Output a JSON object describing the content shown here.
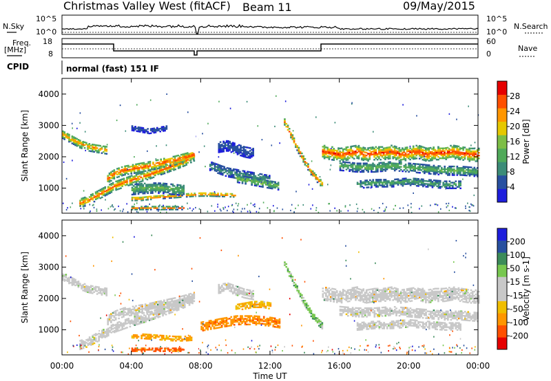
{
  "header": {
    "title": "Christmas Valley West (fitACF)",
    "beam": "Beam 11",
    "date": "09/May/2015"
  },
  "params": {
    "nsky_label": "N.Sky",
    "nsky_ticks": [
      "10^5",
      "10^0"
    ],
    "nsearch_label": "N.Search",
    "nsearch_ticks": [
      "10^5",
      "10^0"
    ],
    "freq_label_1": "Freq.",
    "freq_label_2": "[MHz]",
    "freq_ticks": [
      "18",
      "8"
    ],
    "nave_label": "Nave",
    "nave_ticks": [
      "60",
      "0"
    ],
    "cpid_label": "CPID",
    "cpid_value": "normal (fast) 151 IF"
  },
  "colors": {
    "power_scale": [
      "#1e1edc",
      "#2850a0",
      "#3c8c78",
      "#50aa5a",
      "#7dbe46",
      "#e6c800",
      "#ff9600",
      "#ff5000",
      "#e60000"
    ],
    "velocity_scale": [
      "#e60000",
      "#ff5000",
      "#ff9600",
      "#f0be00",
      "#c8c8c8",
      "#c8c8c8",
      "#78c850",
      "#3c8c5a",
      "#2850a0",
      "#1e1edc"
    ],
    "ground_scatter": "#c8c8c8"
  },
  "chart_data": [
    {
      "type": "heatmap",
      "name": "power",
      "xlabel": "Time UT",
      "ylabel": "Slant Range [km]",
      "xlim": [
        0,
        24
      ],
      "ylim": [
        200,
        4500
      ],
      "yticks": [
        "1000",
        "2000",
        "3000",
        "4000"
      ],
      "colorbar_label": "Power [dB]",
      "colorbar_range": [
        0,
        32
      ],
      "colorbar_ticks": [
        "4",
        "8",
        "12",
        "16",
        "20",
        "24",
        "28"
      ],
      "bands": [
        {
          "t": [
            0.0,
            0.5,
            1.0,
            1.5,
            2.0,
            2.6
          ],
          "r": [
            2700,
            2550,
            2400,
            2300,
            2250,
            2200
          ],
          "w": 260,
          "p": 24
        },
        {
          "t": [
            1.0,
            1.5,
            2.0,
            2.5,
            3.0,
            3.5,
            4.0,
            4.5,
            5.0,
            5.5,
            6.0,
            6.5,
            7.0,
            7.6
          ],
          "r": [
            500,
            600,
            750,
            900,
            1050,
            1150,
            1250,
            1330,
            1420,
            1520,
            1620,
            1720,
            1830,
            2000
          ],
          "w": 280,
          "p": 27
        },
        {
          "t": [
            2.6,
            3.0,
            3.5,
            4.0,
            4.5,
            5.0,
            5.5,
            6.0,
            6.5,
            7.0,
            7.6
          ],
          "r": [
            1300,
            1450,
            1550,
            1600,
            1650,
            1700,
            1760,
            1820,
            1880,
            1950,
            2050
          ],
          "w": 300,
          "p": 28
        },
        {
          "t": [
            4.0,
            4.5,
            5.0,
            5.5,
            6.0,
            6.5,
            7.0,
            7.5,
            8.0,
            8.5,
            9.0,
            9.5,
            10.0
          ],
          "r": [
            650,
            650,
            680,
            700,
            720,
            740,
            760,
            780,
            790,
            790,
            780,
            770,
            760
          ],
          "w": 120,
          "p": 28
        },
        {
          "t": [
            4.0,
            5.0,
            6.0,
            7.0
          ],
          "r": [
            350,
            350,
            350,
            350
          ],
          "w": 100,
          "p": 26
        },
        {
          "t": [
            4.0,
            4.5,
            5.0,
            5.5,
            6.0,
            6.5,
            7.0
          ],
          "r": [
            950,
            980,
            1000,
            1000,
            980,
            950,
            920
          ],
          "w": 350,
          "p": 14
        },
        {
          "t": [
            8.5,
            9.0,
            9.5,
            10.0,
            10.5,
            11.0,
            11.5,
            12.0
          ],
          "r": [
            1700,
            1600,
            1500,
            1450,
            1400,
            1350,
            1300,
            1250
          ],
          "w": 300,
          "p": 10
        },
        {
          "t": [
            10.0,
            10.5,
            11.0,
            11.5,
            12.0,
            12.5
          ],
          "r": [
            1300,
            1250,
            1200,
            1150,
            1100,
            1050
          ],
          "w": 250,
          "p": 16
        },
        {
          "t": [
            12.8,
            13.2,
            13.6,
            14.0,
            14.4,
            14.8,
            15.0
          ],
          "r": [
            3100,
            2650,
            2200,
            1800,
            1450,
            1200,
            1100
          ],
          "w": 200,
          "p": 27
        },
        {
          "t": [
            15.0,
            15.5,
            16.0,
            16.5,
            17.0,
            17.5,
            18.0,
            18.5,
            19.0,
            19.5,
            20.0,
            20.5,
            21.0,
            21.5,
            22.0,
            22.5,
            23.0,
            23.5,
            24.0
          ],
          "r": [
            2150,
            2100,
            2050,
            2100,
            2150,
            2050,
            2100,
            2100,
            2150,
            2050,
            2100,
            2150,
            2050,
            2100,
            2100,
            2150,
            2100,
            2050,
            2050
          ],
          "w": 420,
          "p": 29
        },
        {
          "t": [
            16.0,
            17.0,
            18.0,
            19.0,
            20.0,
            21.0,
            22.0,
            23.0,
            24.0
          ],
          "r": [
            1700,
            1650,
            1650,
            1700,
            1650,
            1600,
            1550,
            1550,
            1500
          ],
          "w": 300,
          "p": 14
        },
        {
          "t": [
            17.0,
            18.0,
            19.0,
            20.0,
            21.0,
            22.0,
            23.0
          ],
          "r": [
            1100,
            1150,
            1150,
            1200,
            1150,
            1100,
            1100
          ],
          "w": 250,
          "p": 12
        },
        {
          "t": [
            9.0,
            9.5,
            10.0,
            10.5,
            11.0
          ],
          "r": [
            2300,
            2350,
            2250,
            2150,
            2100
          ],
          "w": 350,
          "p": 6
        },
        {
          "t": [
            4.0,
            4.5,
            5.0,
            5.5,
            6.0
          ],
          "r": [
            2900,
            2850,
            2800,
            2850,
            2900
          ],
          "w": 150,
          "p": 6
        }
      ]
    },
    {
      "type": "heatmap",
      "name": "velocity",
      "xlabel": "Time UT",
      "ylabel": "Slant Range [km]",
      "xlim": [
        0,
        24
      ],
      "ylim": [
        200,
        4500
      ],
      "xticks": [
        "00:00",
        "04:00",
        "08:00",
        "12:00",
        "16:00",
        "20:00",
        "00:00"
      ],
      "yticks": [
        "1000",
        "2000",
        "3000",
        "4000"
      ],
      "colorbar_label": "Velocity [m s-1]",
      "colorbar_range": [
        -250,
        250
      ],
      "colorbar_ticks": [
        "-200",
        "-100",
        "-50",
        "-15",
        "15",
        "50",
        "100",
        "200"
      ],
      "bands": [
        {
          "t": [
            0.0,
            0.5,
            1.0,
            1.5,
            2.0,
            2.6
          ],
          "r": [
            2700,
            2550,
            2400,
            2300,
            2250,
            2200
          ],
          "w": 260,
          "v": 0
        },
        {
          "t": [
            1.0,
            1.5,
            2.0,
            2.5,
            3.0,
            3.5,
            4.0,
            4.5,
            5.0,
            5.5,
            6.0,
            6.5,
            7.0,
            7.6
          ],
          "r": [
            500,
            600,
            750,
            900,
            1050,
            1150,
            1250,
            1330,
            1420,
            1520,
            1620,
            1720,
            1830,
            2000
          ],
          "w": 280,
          "v": 0
        },
        {
          "t": [
            2.6,
            3.0,
            3.5,
            4.0,
            4.5,
            5.0,
            5.5,
            6.0,
            6.5,
            7.0,
            7.6
          ],
          "r": [
            1300,
            1450,
            1550,
            1600,
            1650,
            1700,
            1760,
            1820,
            1880,
            1950,
            2050
          ],
          "w": 300,
          "v": 0
        },
        {
          "t": [
            4.0,
            4.5,
            5.0,
            5.5,
            6.0,
            6.5,
            7.0,
            7.5
          ],
          "r": [
            800,
            780,
            760,
            740,
            720,
            700,
            700,
            720
          ],
          "w": 140,
          "v": -60
        },
        {
          "t": [
            4.0,
            5.0,
            6.0,
            7.0
          ],
          "r": [
            350,
            350,
            350,
            350
          ],
          "w": 100,
          "v": -120
        },
        {
          "t": [
            8.0,
            8.5,
            9.0,
            9.5,
            10.0,
            10.5,
            11.0,
            11.5,
            12.0,
            12.5
          ],
          "r": [
            1100,
            1150,
            1200,
            1250,
            1300,
            1300,
            1300,
            1280,
            1250,
            1200
          ],
          "w": 300,
          "v": -80
        },
        {
          "t": [
            10.0,
            10.5,
            11.0,
            11.5,
            12.0
          ],
          "r": [
            1700,
            1750,
            1800,
            1800,
            1750
          ],
          "w": 200,
          "v": -40
        },
        {
          "t": [
            12.8,
            13.2,
            13.6,
            14.0,
            14.4,
            14.8,
            15.0
          ],
          "r": [
            3100,
            2650,
            2200,
            1800,
            1450,
            1200,
            1100
          ],
          "w": 200,
          "v": 30
        },
        {
          "t": [
            15.0,
            15.5,
            16.0,
            16.5,
            17.0,
            17.5,
            18.0,
            18.5,
            19.0,
            19.5,
            20.0,
            20.5,
            21.0,
            21.5,
            22.0,
            22.5,
            23.0,
            23.5,
            24.0
          ],
          "r": [
            2150,
            2100,
            2050,
            2100,
            2150,
            2050,
            2100,
            2100,
            2150,
            2050,
            2100,
            2150,
            2050,
            2100,
            2100,
            2150,
            2100,
            2050,
            2050
          ],
          "w": 420,
          "v": 0
        },
        {
          "t": [
            16.0,
            17.0,
            18.0,
            19.0,
            20.0,
            21.0,
            22.0,
            23.0,
            24.0
          ],
          "r": [
            1600,
            1550,
            1550,
            1600,
            1550,
            1500,
            1450,
            1450,
            1400
          ],
          "w": 300,
          "v": 0
        },
        {
          "t": [
            17.0,
            18.0,
            19.0,
            20.0,
            21.0,
            22.0,
            23.0
          ],
          "r": [
            1100,
            1150,
            1150,
            1200,
            1150,
            1100,
            1100
          ],
          "w": 250,
          "v": 0
        },
        {
          "t": [
            9.0,
            9.5,
            10.0,
            10.5,
            11.0
          ],
          "r": [
            2300,
            2350,
            2250,
            2150,
            2100
          ],
          "w": 300,
          "v": 0
        }
      ]
    }
  ]
}
